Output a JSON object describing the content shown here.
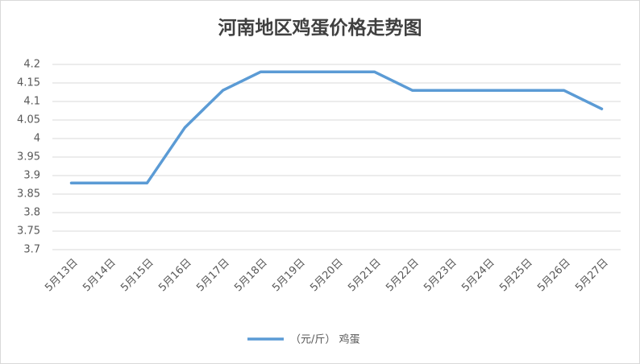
{
  "chart_data": {
    "type": "line",
    "title": "河南地区鸡蛋价格走势图",
    "categories": [
      "5月13日",
      "5月14日",
      "5月15日",
      "5月16日",
      "5月17日",
      "5月18日",
      "5月19日",
      "5月20日",
      "5月21日",
      "5月22日",
      "5月23日",
      "5月24日",
      "5月25日",
      "5月26日",
      "5月27日"
    ],
    "series": [
      {
        "name": "（元/斤） 鸡蛋",
        "color": "#5b9bd5",
        "values": [
          3.88,
          3.88,
          3.88,
          4.03,
          4.13,
          4.18,
          4.18,
          4.18,
          4.18,
          4.13,
          4.13,
          4.13,
          4.13,
          4.13,
          4.08
        ]
      }
    ],
    "ylim": [
      3.7,
      4.2
    ],
    "yticks": [
      3.7,
      3.75,
      3.8,
      3.85,
      3.9,
      3.95,
      4,
      4.05,
      4.1,
      4.15,
      4.2
    ],
    "grid": true,
    "legend": "bottom"
  }
}
